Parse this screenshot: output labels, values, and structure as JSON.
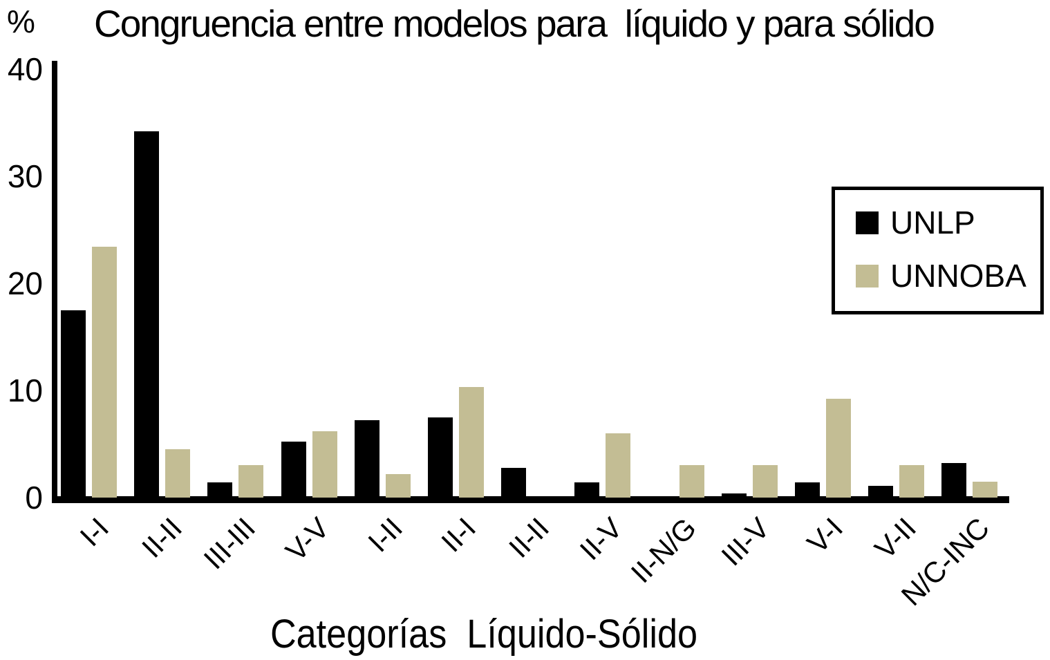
{
  "chart_data": {
    "type": "bar",
    "title": "Congruencia entre modelos para  líquido y para sólido",
    "y_unit_label": "%",
    "xlabel": "Categorías  Líquido-Sólido",
    "categories": [
      "I-I",
      "II-II",
      "III-III",
      "V-V",
      "I-II",
      "II-I",
      "II-II",
      "II-V",
      "II-N/G",
      "III-V",
      "V-I",
      "V-II",
      "N/C-INC"
    ],
    "series": [
      {
        "name": "UNLP",
        "color": "#000000",
        "values": [
          17.5,
          34.2,
          1.4,
          5.2,
          7.2,
          7.5,
          2.8,
          1.4,
          0,
          0.4,
          1.4,
          1.1,
          3.2
        ]
      },
      {
        "name": "UNNOBA",
        "color": "#C3BD94",
        "values": [
          23.4,
          4.5,
          3.0,
          6.2,
          2.2,
          10.3,
          0,
          6.0,
          3.0,
          3.0,
          9.2,
          3.0,
          1.5
        ]
      }
    ],
    "yticks": [
      0,
      10,
      20,
      30,
      40
    ],
    "ylim": [
      0,
      40
    ],
    "grid": false,
    "legend_position": "upper right"
  }
}
